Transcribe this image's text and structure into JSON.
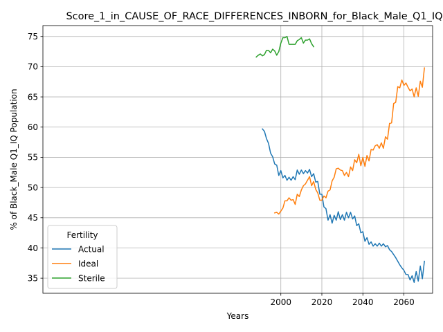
{
  "chart_data": {
    "type": "line",
    "title": "Score_1_in_CAUSE_OF_RACE_DIFFERENCES_INBORN_for_Black_Male_Q1_IQ",
    "xlabel": "Years",
    "ylabel": "% of Black_Male Q1_IQ Population",
    "xlim": [
      1884,
      2074
    ],
    "ylim": [
      32.5,
      76.8
    ],
    "xticks": [
      2000,
      2020,
      2040,
      2060
    ],
    "yticks": [
      35,
      40,
      45,
      50,
      55,
      60,
      65,
      70,
      75
    ],
    "grid": true,
    "legend": {
      "title": "Fertility",
      "placement": "lower-left"
    },
    "series": [
      {
        "name": "Actual",
        "color": "#1f77b4",
        "x": [
          1991,
          1992,
          1993,
          1994,
          1995,
          1996,
          1997,
          1998,
          1999,
          2000,
          2001,
          2002,
          2003,
          2004,
          2005,
          2006,
          2007,
          2008,
          2009,
          2010,
          2011,
          2012,
          2013,
          2014,
          2015,
          2016,
          2017,
          2018,
          2019,
          2020,
          2021,
          2022,
          2023,
          2024,
          2025,
          2026,
          2027,
          2028,
          2029,
          2030,
          2031,
          2032,
          2033,
          2034,
          2035,
          2036,
          2037,
          2038,
          2039,
          2040,
          2041,
          2042,
          2043,
          2044,
          2045,
          2046,
          2047,
          2048,
          2049,
          2050,
          2051,
          2052,
          2053,
          2054,
          2055,
          2056,
          2057,
          2058,
          2059,
          2060,
          2061,
          2062,
          2063,
          2064,
          2065,
          2066,
          2067,
          2068,
          2069,
          2070
        ],
        "y": [
          59.7,
          59.3,
          58.1,
          57.3,
          55.7,
          55.1,
          53.9,
          53.7,
          52.0,
          52.8,
          51.6,
          52.0,
          51.2,
          51.7,
          51.2,
          51.8,
          51.3,
          52.9,
          52.2,
          52.9,
          52.3,
          52.8,
          52.4,
          53.0,
          51.8,
          52.3,
          50.9,
          51.0,
          48.9,
          48.9,
          46.8,
          46.5,
          44.6,
          45.5,
          44.1,
          45.4,
          44.6,
          46.0,
          44.7,
          45.5,
          44.6,
          45.9,
          45.0,
          45.9,
          44.8,
          45.3,
          43.7,
          44.0,
          42.5,
          42.7,
          41.1,
          41.7,
          40.6,
          41.0,
          40.3,
          40.7,
          40.3,
          40.8,
          40.3,
          40.7,
          40.2,
          40.4,
          39.7,
          39.4,
          38.9,
          38.4,
          37.8,
          37.2,
          36.7,
          36.3,
          35.6,
          35.6,
          34.7,
          35.4,
          34.3,
          36.1,
          34.5,
          37.0,
          34.9,
          37.8
        ]
      },
      {
        "name": "Ideal",
        "color": "#ff7f0e",
        "x": [
          1997,
          1998,
          1999,
          2000,
          2001,
          2002,
          2003,
          2004,
          2005,
          2006,
          2007,
          2008,
          2009,
          2010,
          2011,
          2012,
          2013,
          2014,
          2015,
          2016,
          2017,
          2018,
          2019,
          2020,
          2021,
          2022,
          2023,
          2024,
          2025,
          2026,
          2027,
          2028,
          2029,
          2030,
          2031,
          2032,
          2033,
          2034,
          2035,
          2036,
          2037,
          2038,
          2039,
          2040,
          2041,
          2042,
          2043,
          2044,
          2045,
          2046,
          2047,
          2048,
          2049,
          2050,
          2051,
          2052,
          2053,
          2054,
          2055,
          2056,
          2057,
          2058,
          2059,
          2060,
          2061,
          2062,
          2063,
          2064,
          2065,
          2066,
          2067,
          2068,
          2069,
          2070
        ],
        "y": [
          45.8,
          45.9,
          45.6,
          46.1,
          46.6,
          47.8,
          47.8,
          48.3,
          47.9,
          48.0,
          47.2,
          48.9,
          48.5,
          49.6,
          50.3,
          50.6,
          51.2,
          51.8,
          50.3,
          51.0,
          49.7,
          49.1,
          47.9,
          47.9,
          48.6,
          48.3,
          49.4,
          49.6,
          51.1,
          51.7,
          53.1,
          53.2,
          52.9,
          52.8,
          52.0,
          52.5,
          51.8,
          53.4,
          52.8,
          54.6,
          54.1,
          55.5,
          53.6,
          55.0,
          53.5,
          55.3,
          54.4,
          56.3,
          56.2,
          56.9,
          57.1,
          56.5,
          57.4,
          56.5,
          58.4,
          58.0,
          60.6,
          60.7,
          63.9,
          64.1,
          66.7,
          66.5,
          67.8,
          66.9,
          67.3,
          66.6,
          66.0,
          66.3,
          65.0,
          66.5,
          65.1,
          67.6,
          66.6,
          69.8
        ]
      },
      {
        "name": "Sterile",
        "color": "#2ca02c",
        "x": [
          1988,
          1989,
          1990,
          1991,
          1992,
          1993,
          1994,
          1995,
          1996,
          1997,
          1998,
          1999,
          2000,
          2001,
          2002,
          2003,
          2004,
          2005,
          2006,
          2007,
          2008,
          2009,
          2010,
          2011,
          2012,
          2013,
          2014,
          2015,
          2016
        ],
        "y": [
          71.6,
          71.9,
          72.1,
          71.8,
          72.0,
          72.7,
          72.7,
          72.3,
          72.9,
          72.6,
          71.9,
          72.5,
          73.9,
          74.8,
          74.8,
          75.0,
          73.7,
          73.7,
          73.7,
          73.7,
          74.3,
          74.5,
          74.8,
          73.9,
          74.4,
          74.4,
          74.6,
          73.8,
          73.3
        ]
      }
    ]
  }
}
